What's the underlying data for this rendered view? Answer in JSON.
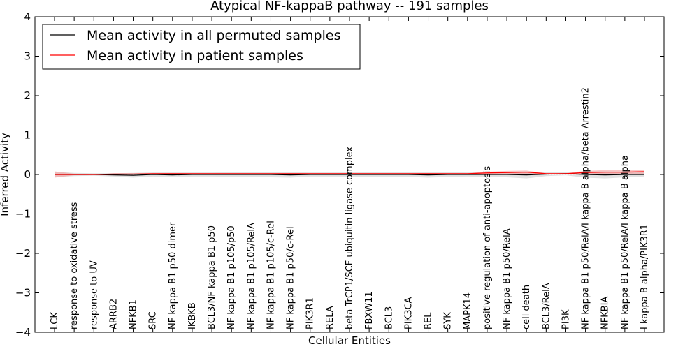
{
  "chart_data": {
    "type": "line",
    "title": "Atypical NF-kappaB pathway -- 191 samples",
    "xlabel": "Cellular Entities",
    "ylabel": "Inferred Activity",
    "ylim": [
      -4,
      4
    ],
    "yticks": [
      "−4",
      "−3",
      "−2",
      "−1",
      "0",
      "1",
      "2",
      "3",
      "4"
    ],
    "ytick_values": [
      -4,
      -3,
      -2,
      -1,
      0,
      1,
      2,
      3,
      4
    ],
    "categories": [
      "LCK",
      "response to oxidative stress",
      "response to UV",
      "ARRB2",
      "NFKB1",
      "SRC",
      "NF kappa B1 p50 dimer",
      "IKBKB",
      "BCL3/NF kappa B1 p50",
      "NF kappa B1 p105/p50",
      "NF kappa B1 p105/RelA",
      "NF kappa B1 p105/c-Rel",
      "NF kappa B1 p50/c-Rel",
      "PIK3R1",
      "RELA",
      "beta TrCP1/SCF ubiquitin ligase complex",
      "FBXW11",
      "BCL3",
      "PIK3CA",
      "REL",
      "SYK",
      "MAPK14",
      "positive regulation of anti-apoptosis",
      "NF kappa B1 p50/RelA",
      "cell death",
      "BCL3/RelA",
      "PI3K",
      "NF kappa B1 p50/RelA/I kappa B alpha/beta Arrestin2",
      "NFKBIA",
      "NF kappa B1 p50/RelA/I kappa B alpha",
      "I kappa B alpha/PIK3R1"
    ],
    "legend_position": "upper-left",
    "series": [
      {
        "name": "Mean activity in all permuted samples",
        "color": "#000000",
        "band_color": "#c8c8c8",
        "values": [
          0.0,
          0.0,
          0.0,
          -0.01,
          -0.02,
          0.0,
          -0.01,
          0.0,
          0.0,
          0.0,
          0.0,
          0.0,
          -0.01,
          0.0,
          0.0,
          0.0,
          0.0,
          0.0,
          0.0,
          -0.01,
          0.0,
          0.0,
          0.0,
          0.0,
          -0.01,
          0.01,
          0.02,
          0.0,
          -0.01,
          0.0,
          0.0
        ],
        "band": [
          0.07,
          0.04,
          0.03,
          0.04,
          0.06,
          0.05,
          0.06,
          0.05,
          0.05,
          0.06,
          0.06,
          0.07,
          0.07,
          0.05,
          0.05,
          0.05,
          0.06,
          0.06,
          0.06,
          0.07,
          0.06,
          0.05,
          0.06,
          0.07,
          0.09,
          0.05,
          0.04,
          0.08,
          0.09,
          0.07,
          0.06
        ]
      },
      {
        "name": "Mean activity in patient samples",
        "color": "#ff0000",
        "band_color": "#f4a0a0",
        "values": [
          0.0,
          0.0,
          0.0,
          0.01,
          0.01,
          0.02,
          0.02,
          0.02,
          0.02,
          0.02,
          0.02,
          0.02,
          0.02,
          0.02,
          0.02,
          0.02,
          0.02,
          0.02,
          0.02,
          0.02,
          0.02,
          0.02,
          0.04,
          0.05,
          0.06,
          0.02,
          0.02,
          0.05,
          0.06,
          0.06,
          0.07
        ],
        "band": [
          0.08,
          0.02,
          0.01,
          0.01,
          0.01,
          0.01,
          0.01,
          0.01,
          0.01,
          0.01,
          0.01,
          0.01,
          0.01,
          0.01,
          0.01,
          0.01,
          0.01,
          0.01,
          0.01,
          0.01,
          0.01,
          0.01,
          0.03,
          0.04,
          0.04,
          0.01,
          0.01,
          0.04,
          0.05,
          0.05,
          0.05
        ]
      }
    ],
    "baseline": 0
  }
}
